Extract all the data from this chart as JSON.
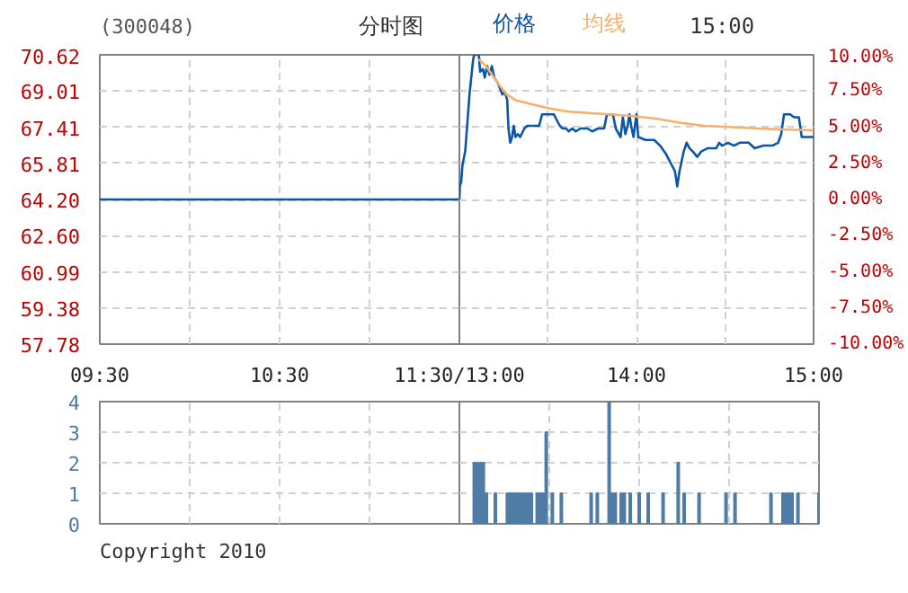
{
  "chart_data": [
    {
      "type": "line",
      "title": "分时图",
      "subtitle": "(300048)",
      "annotations": [
        "15:00"
      ],
      "grid": true,
      "line_style": "solid",
      "marker": "none",
      "xlim": [
        9.5,
        11.5
      ],
      "xticks": [
        {
          "value": 9.5,
          "label": "09:30"
        },
        {
          "value": 10,
          "label": null
        },
        {
          "value": 10.5,
          "label": "10:30"
        },
        {
          "value": 11,
          "label": null
        },
        {
          "value": 11.5,
          "label": "11:30/13:00"
        }
      ],
      "ylim": [
        57.78,
        70.62
      ],
      "yticks": [
        {
          "value": 57.78,
          "label": "57.78"
        },
        {
          "value": 59.38,
          "label": "59.38"
        },
        {
          "value": 60.99,
          "label": "60.99"
        },
        {
          "value": 62.6,
          "label": "62.60"
        },
        {
          "value": 64.2,
          "label": "64.20"
        },
        {
          "value": 65.81,
          "label": "65.81"
        },
        {
          "value": 67.41,
          "label": "67.41"
        },
        {
          "value": 69.01,
          "label": "69.01"
        },
        {
          "value": 70.62,
          "label": "70.62"
        }
      ],
      "series": [
        {
          "color": "#0b56a8",
          "x": [
            9.5,
            10,
            10.5,
            11,
            11.5
          ],
          "values": [
            64.2,
            64.2,
            64.2,
            64.2,
            64.2
          ]
        }
      ]
    },
    {
      "type": "line",
      "legend": "top",
      "grid": true,
      "line_style": "solid",
      "marker": "none",
      "tick_labels": "x",
      "xlim": [
        13,
        15
      ],
      "xticks": [
        {
          "value": 13,
          "label": null
        },
        {
          "value": 13.5,
          "label": null
        },
        {
          "value": 14,
          "label": "14:00"
        },
        {
          "value": 14.5,
          "label": null
        },
        {
          "value": 15,
          "label": "15:00"
        }
      ],
      "ylim": [
        57.78,
        70.62
      ],
      "yticks": [
        57.78,
        59.38,
        60.99,
        62.6,
        64.2,
        65.81,
        67.41,
        69.01,
        70.62
      ],
      "y2lim": [
        -10,
        10
      ],
      "y2ticks": [
        {
          "value": -10,
          "label": "-10.00%"
        },
        {
          "value": -7.5,
          "label": "-7.50%"
        },
        {
          "value": -5,
          "label": "-5.00%"
        },
        {
          "value": -2.5,
          "label": "-2.50%"
        },
        {
          "value": 0,
          "label": "0.00%"
        },
        {
          "value": 2.5,
          "label": "2.50%"
        },
        {
          "value": 5,
          "label": "5.00%"
        },
        {
          "value": 7.5,
          "label": "7.50%"
        },
        {
          "value": 10,
          "label": "10.00%"
        }
      ],
      "series": [
        {
          "name": "价格",
          "color": "#0b56a8",
          "x": [
            13.0,
            13.003,
            13.01,
            13.017,
            13.033,
            13.057,
            13.077,
            13.083,
            13.11,
            13.117,
            13.133,
            13.143,
            13.157,
            13.17,
            13.183,
            13.197,
            13.217,
            13.23,
            13.243,
            13.257,
            13.27,
            13.277,
            13.287,
            13.297,
            13.307,
            13.317,
            13.33,
            13.343,
            13.367,
            13.383,
            13.417,
            13.45,
            13.467,
            13.5,
            13.533,
            13.55,
            13.567,
            13.583,
            13.603,
            13.617,
            13.637,
            13.657,
            13.683,
            13.723,
            13.75,
            13.783,
            13.817,
            13.833,
            13.867,
            13.883,
            13.91,
            13.923,
            13.937,
            13.95,
            13.96,
            13.97,
            13.983,
            14.0,
            14.01,
            14.05,
            14.1,
            14.133,
            14.167,
            14.2,
            14.217,
            14.23,
            14.243,
            14.267,
            14.283,
            14.3,
            14.317,
            14.343,
            14.367,
            14.4,
            14.45,
            14.467,
            14.483,
            14.517,
            14.55,
            14.583,
            14.633,
            14.667,
            14.717,
            14.767,
            14.8,
            14.817,
            14.833,
            14.867,
            14.89,
            14.917,
            14.933,
            15.0
          ],
          "values": [
            64.2,
            64.83,
            64.96,
            65.71,
            66.34,
            68.86,
            70.37,
            70.62,
            70.62,
            69.87,
            69.99,
            69.61,
            70.12,
            69.74,
            70.12,
            69.61,
            69.36,
            69.11,
            68.86,
            68.98,
            68.61,
            67.35,
            66.72,
            66.97,
            67.47,
            66.97,
            67.1,
            66.97,
            67.35,
            67.47,
            67.47,
            67.47,
            67.98,
            67.98,
            67.98,
            67.72,
            67.47,
            67.35,
            67.35,
            67.22,
            67.35,
            67.22,
            67.35,
            67.35,
            67.22,
            67.35,
            67.35,
            67.98,
            67.98,
            67.35,
            66.97,
            67.85,
            67.1,
            67.47,
            67.98,
            67.47,
            66.97,
            67.98,
            66.97,
            66.84,
            66.84,
            66.59,
            66.21,
            65.71,
            65.46,
            64.78,
            65.46,
            66.34,
            66.72,
            66.47,
            66.34,
            66.09,
            66.34,
            66.47,
            66.47,
            66.72,
            66.59,
            66.72,
            66.59,
            66.72,
            66.72,
            66.47,
            66.59,
            66.59,
            66.72,
            67.1,
            67.98,
            67.98,
            67.85,
            67.85,
            66.97,
            66.97
          ]
        },
        {
          "name": "均线",
          "color": "#f5b06a",
          "x": [
            13.11,
            13.15,
            13.217,
            13.267,
            13.317,
            13.383,
            13.45,
            13.517,
            13.617,
            13.75,
            13.85,
            13.983,
            14.117,
            14.25,
            14.383,
            14.517,
            14.683,
            14.85,
            15.0
          ],
          "values": [
            70.42,
            70.12,
            69.36,
            68.86,
            68.61,
            68.48,
            68.35,
            68.23,
            68.1,
            68.03,
            67.98,
            67.9,
            67.78,
            67.6,
            67.47,
            67.42,
            67.35,
            67.3,
            67.27
          ]
        }
      ]
    },
    {
      "type": "bar",
      "annotations": [
        "Copyright 2010"
      ],
      "grid": true,
      "tick_labels": "y",
      "xlim": [
        9.5,
        11.5
      ],
      "xticks": [
        {
          "value": 9.5,
          "label": null
        },
        {
          "value": 10,
          "label": null
        },
        {
          "value": 10.5,
          "label": null
        },
        {
          "value": 11,
          "label": null
        },
        {
          "value": 11.5,
          "label": null
        }
      ],
      "ylim": [
        0,
        4
      ],
      "yticks": [
        0,
        1,
        2,
        3,
        4
      ]
    },
    {
      "type": "bar",
      "grid": true,
      "tick_labels": false,
      "color": "#4e7ca4",
      "xlim": [
        13,
        15
      ],
      "xticks": [
        {
          "value": 13.5,
          "label": null
        },
        {
          "value": 14,
          "label": null
        },
        {
          "value": 14.5,
          "label": null
        }
      ],
      "ylim": [
        0,
        4
      ],
      "yticks": [
        0,
        1,
        2,
        3,
        4
      ],
      "x": [
        13.083,
        13.1,
        13.117,
        13.133,
        13.15,
        13.2,
        13.267,
        13.283,
        13.3,
        13.317,
        13.333,
        13.35,
        13.367,
        13.383,
        13.4,
        13.433,
        13.45,
        13.467,
        13.483,
        13.517,
        13.567,
        13.733,
        13.767,
        13.833,
        13.85,
        13.867,
        13.9,
        13.917,
        13.95,
        14.0,
        14.05,
        14.133,
        14.217,
        14.25,
        14.333,
        14.483,
        14.533,
        14.733,
        14.8,
        14.817,
        14.833,
        14.85,
        14.883,
        15.0
      ],
      "values": [
        2,
        2,
        2,
        2,
        1,
        1,
        1,
        1,
        1,
        1,
        1,
        1,
        1,
        1,
        1,
        1,
        1,
        1,
        3,
        1,
        1,
        1,
        1,
        4,
        1,
        1,
        1,
        1,
        1,
        1,
        1,
        1,
        2,
        1,
        1,
        1,
        1,
        1,
        1,
        1,
        1,
        1,
        1,
        1
      ]
    }
  ]
}
